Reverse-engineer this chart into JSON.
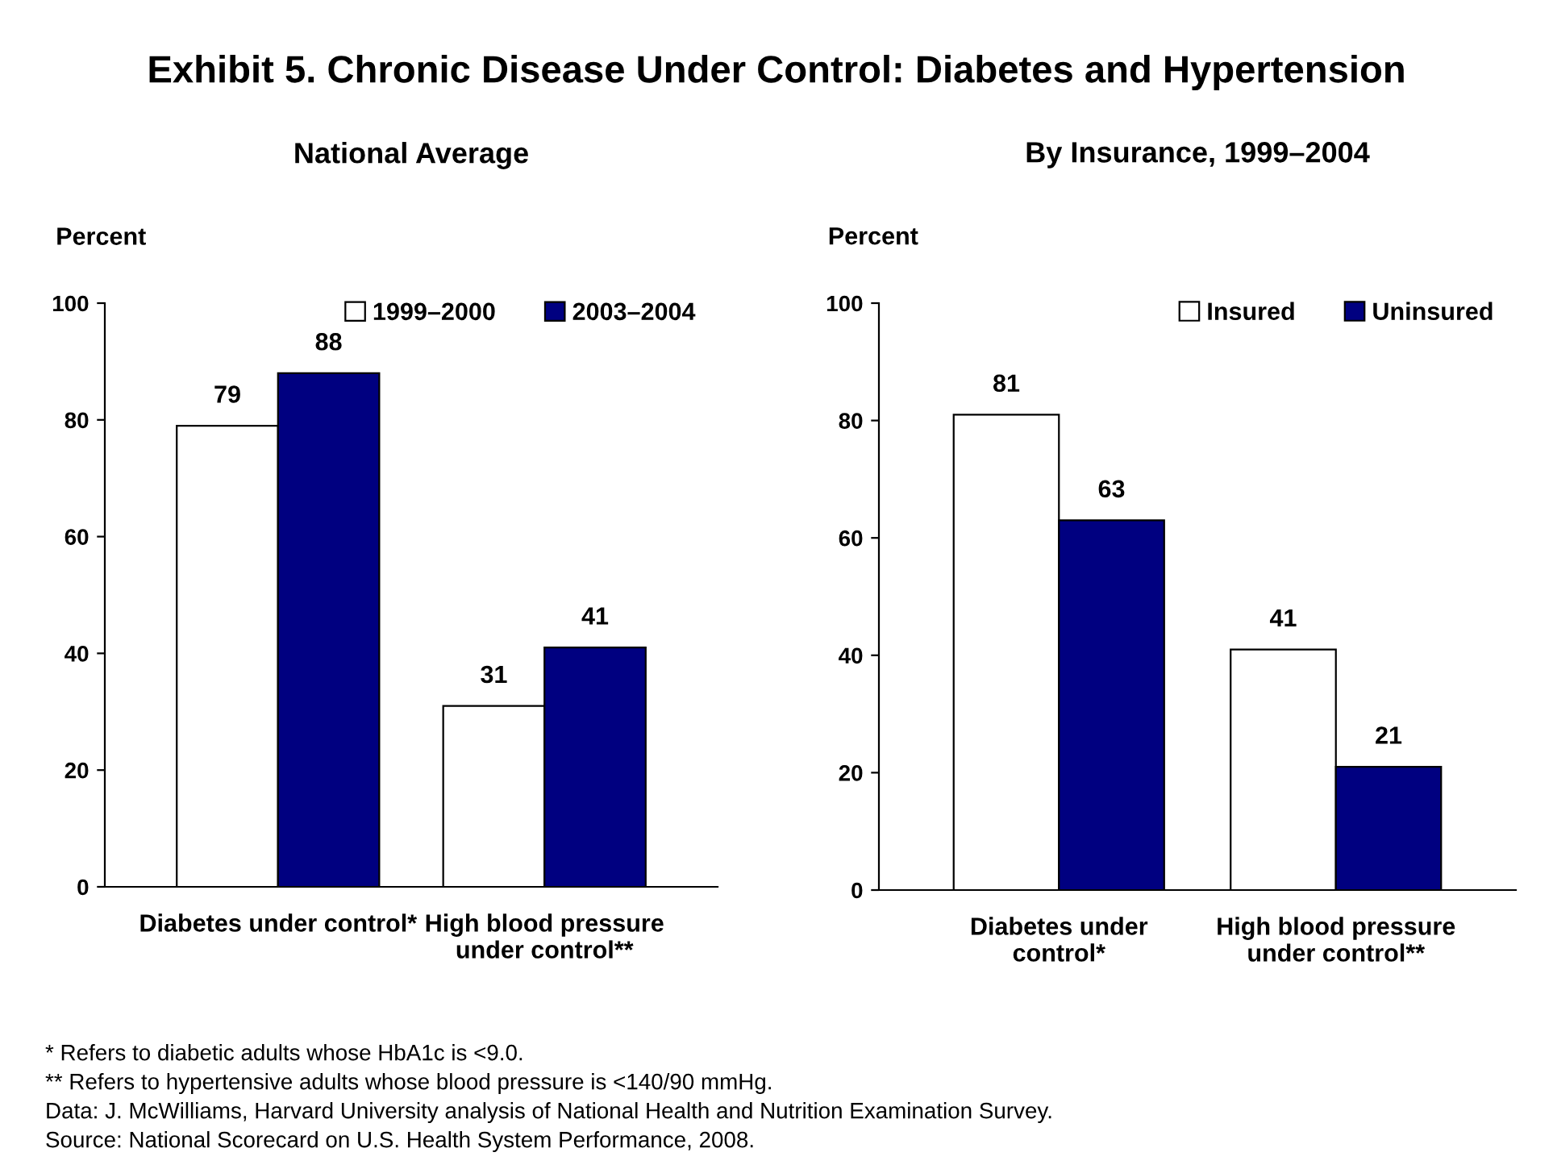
{
  "chart_data": [
    {
      "type": "bar",
      "title": "Exhibit 5. Chronic Disease Under Control: Diabetes and Hypertension",
      "subtitle": "National Average",
      "ylabel": "Percent",
      "categories": [
        "Diabetes under control*",
        "High blood pressure\nunder control**"
      ],
      "series": [
        {
          "name": "1999–2000",
          "color": "#ffffff",
          "values": [
            79,
            31
          ]
        },
        {
          "name": "2003–2004",
          "color": "#000080",
          "values": [
            88,
            41
          ]
        }
      ],
      "ylim": [
        0,
        100
      ],
      "yticks": [
        0,
        20,
        40,
        60,
        80,
        100
      ],
      "grid": false,
      "legend": "top right",
      "data_labels": true,
      "annotations": [
        "* Refers to diabetic adults whose HbA1c is <9.0.",
        "** Refers to hypertensive adults whose blood pressure is <140/90 mmHg.",
        "Data: J. McWilliams, Harvard University analysis of National Health and Nutrition Examination Survey.",
        "Source: National Scorecard on U.S. Health System Performance, 2008."
      ]
    },
    {
      "type": "bar",
      "subtitle": "By Insurance, 1999–2004",
      "ylabel": "Percent",
      "categories": [
        "Diabetes under\ncontrol*",
        "High blood pressure\nunder control**"
      ],
      "series": [
        {
          "name": "Insured",
          "color": "#ffffff",
          "values": [
            81,
            41
          ]
        },
        {
          "name": "Uninsured",
          "color": "#000080",
          "values": [
            63,
            21
          ]
        }
      ],
      "ylim": [
        0,
        100
      ],
      "yticks": [
        0,
        20,
        40,
        60,
        80,
        100
      ],
      "grid": false,
      "legend": "top right",
      "data_labels": true
    }
  ]
}
